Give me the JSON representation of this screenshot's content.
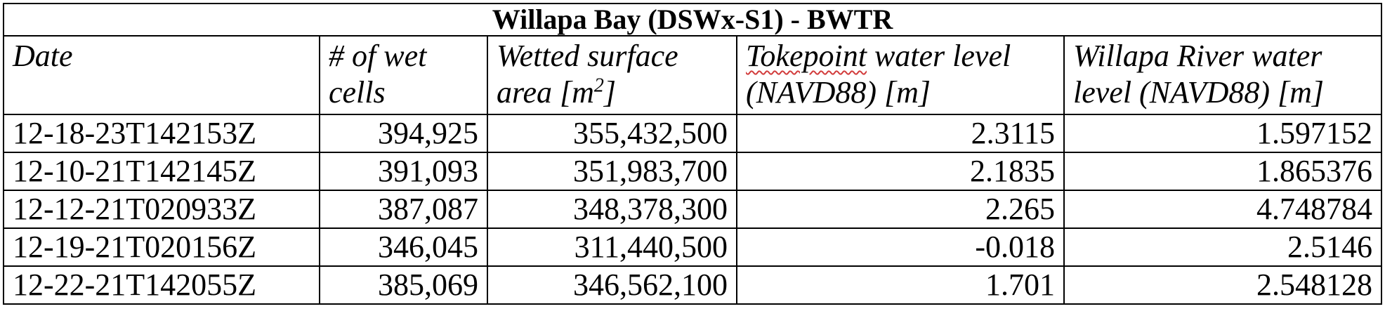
{
  "table": {
    "title": "Willapa Bay (DSWx-S1) - BWTR",
    "headers": {
      "date": "Date",
      "wet_cells_1": "# of wet",
      "wet_cells_2": "cells",
      "area_1": "Wetted surface",
      "area_2_pre": "area [m",
      "area_2_sup": "2",
      "area_2_post": "]",
      "tokepoint_word": "Tokepoint",
      "tokepoint_rest": " water level",
      "tokepoint_2": "(NAVD88) [m]",
      "willapa_1": "Willapa River water",
      "willapa_2": "level (NAVD88) [m]"
    },
    "rows": [
      {
        "date": "12-18-23T142153Z",
        "wet_cells": "394,925",
        "area": "355,432,500",
        "tokepoint": "2.3115",
        "willapa": "1.597152"
      },
      {
        "date": "12-10-21T142145Z",
        "wet_cells": "391,093",
        "area": "351,983,700",
        "tokepoint": "2.1835",
        "willapa": "1.865376"
      },
      {
        "date": "12-12-21T020933Z",
        "wet_cells": "387,087",
        "area": "348,378,300",
        "tokepoint": "2.265",
        "willapa": "4.748784"
      },
      {
        "date": "12-19-21T020156Z",
        "wet_cells": "346,045",
        "area": "311,440,500",
        "tokepoint": "-0.018",
        "willapa": "2.5146"
      },
      {
        "date": "12-22-21T142055Z",
        "wet_cells": "385,069",
        "area": "346,562,100",
        "tokepoint": "1.701",
        "willapa": "2.548128"
      }
    ]
  }
}
